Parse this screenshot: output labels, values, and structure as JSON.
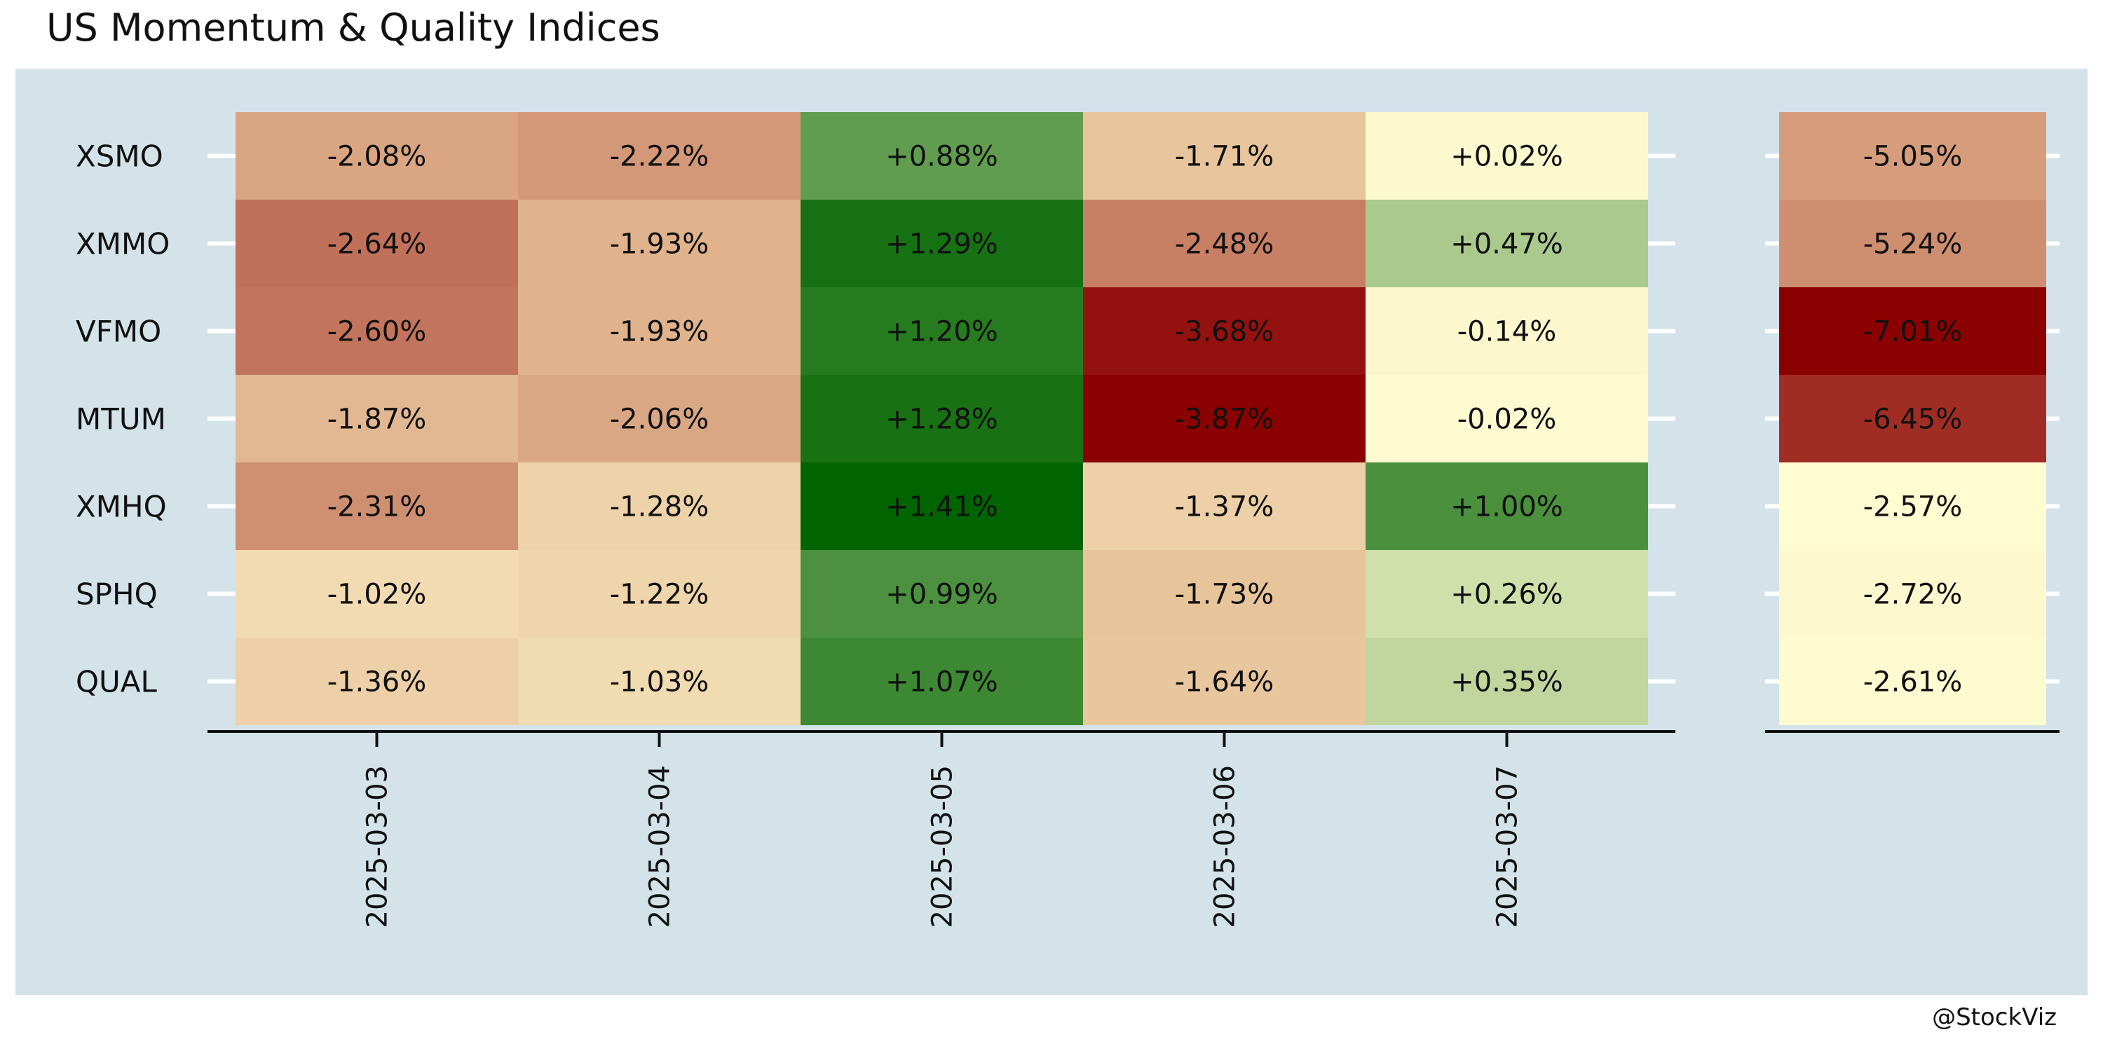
{
  "title": "US Momentum & Quality Indices",
  "credit": "@StockViz",
  "colors": {
    "background_panel": "#d4e3ea",
    "negative_extreme": "#8b0000",
    "neutral": "#fffcd2",
    "positive_extreme": "#006400"
  },
  "chart_data": [
    {
      "type": "heatmap",
      "title": "",
      "xlabel": "",
      "ylabel": "",
      "rows": [
        "XSMO",
        "XMMO",
        "VFMO",
        "MTUM",
        "XMHQ",
        "SPHQ",
        "QUAL"
      ],
      "columns": [
        "2025-03-03",
        "2025-03-04",
        "2025-03-05",
        "2025-03-06",
        "2025-03-07"
      ],
      "values": [
        [
          -2.08,
          -2.22,
          0.88,
          -1.71,
          0.02
        ],
        [
          -2.64,
          -1.93,
          1.29,
          -2.48,
          0.47
        ],
        [
          -2.6,
          -1.93,
          1.2,
          -3.68,
          -0.14
        ],
        [
          -1.87,
          -2.06,
          1.28,
          -3.87,
          -0.02
        ],
        [
          -2.31,
          -1.28,
          1.41,
          -1.37,
          1.0
        ],
        [
          -1.02,
          -1.22,
          0.99,
          -1.73,
          0.26
        ],
        [
          -1.36,
          -1.03,
          1.07,
          -1.64,
          0.35
        ]
      ],
      "labels": [
        [
          "-2.08%",
          "-2.22%",
          "+0.88%",
          "-1.71%",
          "+0.02%"
        ],
        [
          "-2.64%",
          "-1.93%",
          "+1.29%",
          "-2.48%",
          "+0.47%"
        ],
        [
          "-2.60%",
          "-1.93%",
          "+1.20%",
          "-3.68%",
          "-0.14%"
        ],
        [
          "-1.87%",
          "-2.06%",
          "+1.28%",
          "-3.87%",
          "-0.02%"
        ],
        [
          "-2.31%",
          "-1.28%",
          "+1.41%",
          "-1.37%",
          "+1.00%"
        ],
        [
          "-1.02%",
          "-1.22%",
          "+0.99%",
          "-1.73%",
          "+0.26%"
        ],
        [
          "-1.36%",
          "-1.03%",
          "+1.07%",
          "-1.64%",
          "+0.35%"
        ]
      ],
      "color_scale": "diverging red-yellow-green"
    },
    {
      "type": "heatmap",
      "title": "",
      "xlabel": "",
      "ylabel": "",
      "rows": [
        "XSMO",
        "XMMO",
        "VFMO",
        "MTUM",
        "XMHQ",
        "SPHQ",
        "QUAL"
      ],
      "values": [
        -5.05,
        -5.24,
        -7.01,
        -6.45,
        -2.57,
        -2.72,
        -2.61
      ],
      "labels": [
        "-5.05%",
        "-5.24%",
        "-7.01%",
        "-6.45%",
        "-2.57%",
        "-2.72%",
        "-2.61%"
      ],
      "color_scale": "red-yellow"
    }
  ]
}
